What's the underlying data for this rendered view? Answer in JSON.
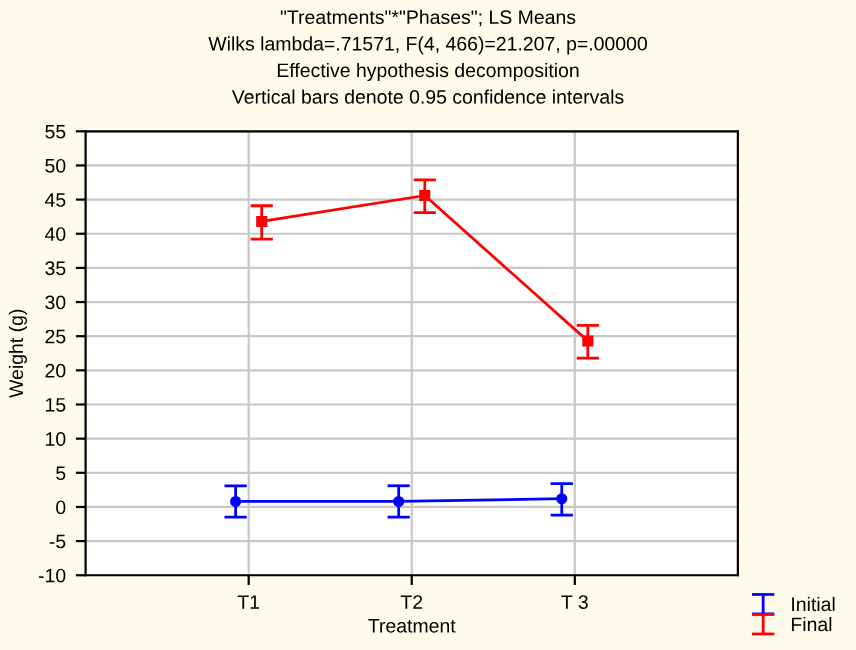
{
  "chart_data": {
    "type": "line",
    "title": "\"Treatments\"*\"Phases\"; LS Means\nWilks lambda=.71571, F(4, 466)=21.207, p=.00000\nEffective hypothesis decomposition\nVertical bars denote 0.95 confidence intervals",
    "xlabel": "Treatment",
    "ylabel": "Weight (g)",
    "categories": [
      "T1",
      "T2",
      "T 3"
    ],
    "series": [
      {
        "name": "Initial",
        "color": "#0000ff",
        "marker": "circle",
        "values": [
          0.8,
          0.8,
          1.2
        ],
        "errors": [
          [
            -1.5,
            3.1
          ],
          [
            -1.5,
            3.1
          ],
          [
            -1.2,
            3.4
          ]
        ]
      },
      {
        "name": "Final",
        "color": "#ff0000",
        "marker": "square",
        "values": [
          41.8,
          45.6,
          24.3
        ],
        "errors": [
          [
            39.2,
            44.1
          ],
          [
            43.1,
            47.9
          ],
          [
            21.8,
            26.6
          ]
        ]
      }
    ],
    "ylim": [
      -10,
      55
    ],
    "yticks": [
      -10,
      -5,
      0,
      5,
      10,
      15,
      20,
      25,
      30,
      35,
      40,
      45,
      50,
      55
    ],
    "grid": true,
    "legend": "bottom right"
  }
}
